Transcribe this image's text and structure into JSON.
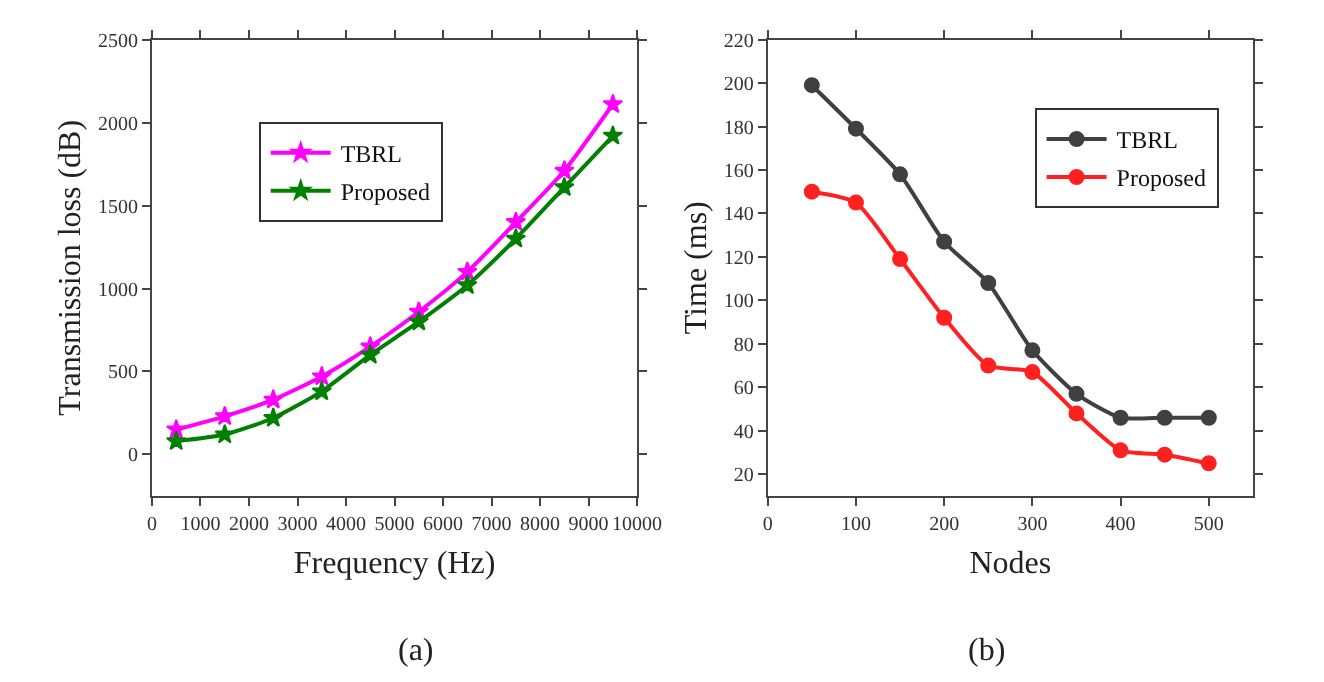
{
  "chart_data": [
    {
      "type": "line",
      "title": "(a)",
      "xlabel": "Frequency (Hz)",
      "ylabel": "Transmission loss (dB)",
      "x": [
        500,
        1500,
        2500,
        3500,
        4500,
        5500,
        6500,
        7500,
        8500,
        9500
      ],
      "series": [
        {
          "name": "TBRL",
          "color": "#ff00ff",
          "values": [
            150,
            230,
            330,
            470,
            650,
            860,
            1100,
            1400,
            1710,
            2110
          ]
        },
        {
          "name": "Proposed",
          "color": "#008000",
          "values": [
            80,
            120,
            220,
            380,
            600,
            800,
            1020,
            1300,
            1610,
            1920
          ]
        }
      ],
      "xlim": [
        0,
        10000
      ],
      "xticks": [
        0,
        1000,
        2000,
        3000,
        4000,
        5000,
        6000,
        7000,
        8000,
        9000,
        10000
      ],
      "ylim": [
        -250,
        2500
      ],
      "yticks": [
        0,
        500,
        1000,
        1500,
        2000,
        2500
      ],
      "legend": "top left",
      "marker": "star",
      "line_style": "solid"
    },
    {
      "type": "line",
      "title": "(b)",
      "xlabel": "Nodes",
      "ylabel": "Time (ms)",
      "x": [
        50,
        100,
        150,
        200,
        250,
        300,
        350,
        400,
        450,
        500
      ],
      "series": [
        {
          "name": "TBRL",
          "color": "#404040",
          "values": [
            199,
            179,
            158,
            127,
            108,
            77,
            57,
            46,
            46,
            46
          ]
        },
        {
          "name": "Proposed",
          "color": "#ff2020",
          "values": [
            150,
            145,
            119,
            92,
            70,
            67,
            48,
            31,
            29,
            25
          ]
        }
      ],
      "xlim": [
        0,
        550
      ],
      "xticks": [
        0,
        100,
        200,
        300,
        400,
        500
      ],
      "ylim": [
        10,
        220
      ],
      "yticks": [
        20,
        40,
        60,
        80,
        100,
        120,
        140,
        160,
        180,
        200,
        220
      ],
      "legend": "top right",
      "marker": "circle",
      "line_style": "solid"
    }
  ]
}
